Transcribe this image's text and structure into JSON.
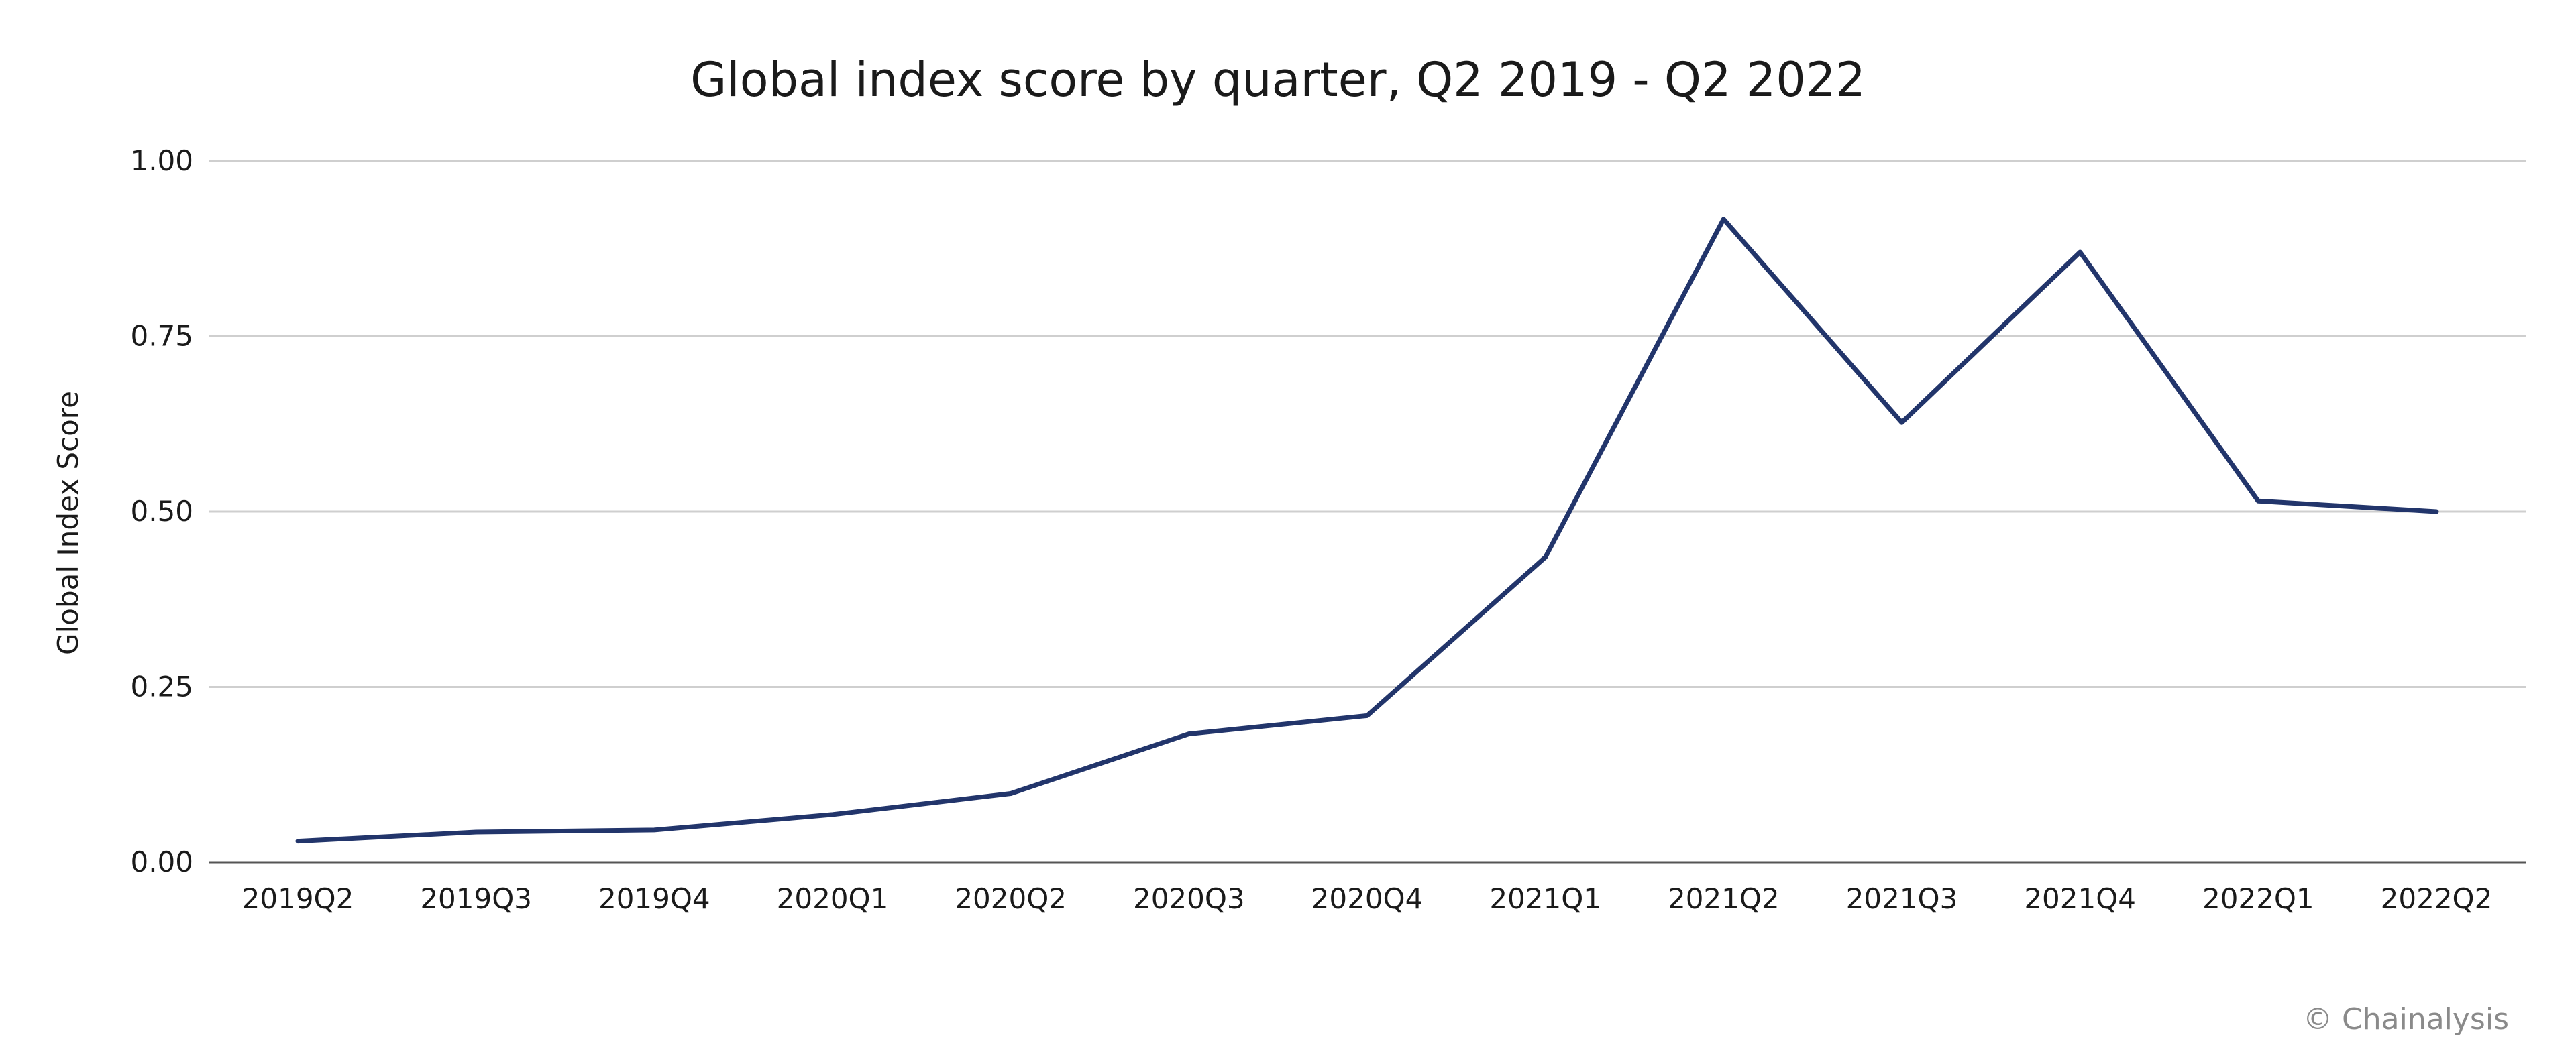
{
  "colors": {
    "line": "#22356b",
    "grid": "#cfcfcf",
    "axis": "#555555",
    "text": "#1a1a1a",
    "credit": "#8a8a8a"
  },
  "credit": "© Chainalysis",
  "chart_data": {
    "type": "line",
    "title": "Global index score by quarter, Q2 2019 - Q2 2022",
    "xlabel": "",
    "ylabel": "Global Index Score",
    "categories": [
      "2019Q2",
      "2019Q3",
      "2019Q4",
      "2020Q1",
      "2020Q2",
      "2020Q3",
      "2020Q4",
      "2021Q1",
      "2021Q2",
      "2021Q3",
      "2021Q4",
      "2022Q1",
      "2022Q2"
    ],
    "series": [
      {
        "values": [
          0.03,
          0.043,
          0.046,
          0.068,
          0.098,
          0.183,
          0.209,
          0.435,
          0.917,
          0.627,
          0.87,
          0.515,
          0.5
        ]
      }
    ],
    "ylim": [
      0,
      1
    ],
    "yticks": [
      "0.00",
      "0.25",
      "0.50",
      "0.75",
      "1.00"
    ],
    "ytick_values": [
      0,
      0.25,
      0.5,
      0.75,
      1
    ],
    "grid": true,
    "legend": "none"
  }
}
